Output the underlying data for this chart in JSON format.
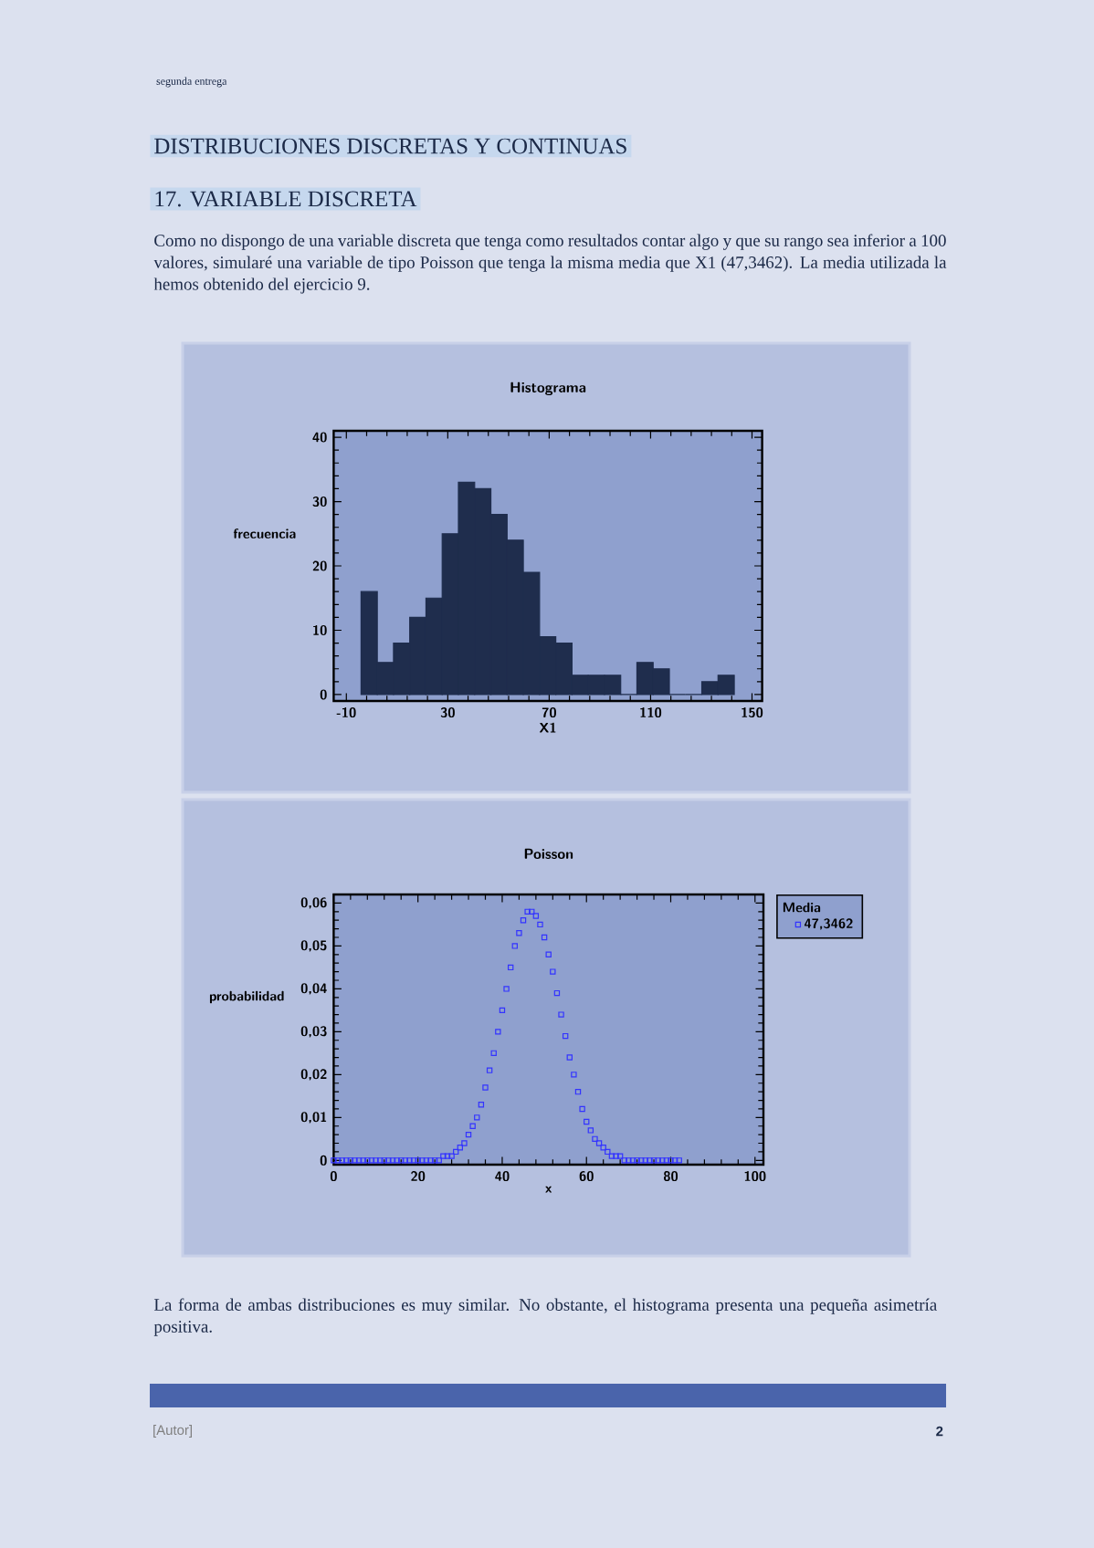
{
  "chart_data": [
    {
      "type": "histogram",
      "title": "Histograma",
      "xlabel": "X1",
      "ylabel": "frecuencia",
      "bins": [
        -4.2,
        2.2,
        8.6,
        15.0,
        21.4,
        27.8,
        34.2,
        40.6,
        47.0,
        53.4,
        59.8,
        66.2,
        72.6,
        79.0,
        85.4,
        91.8,
        98.2,
        104.6,
        111.0,
        117.4,
        123.8,
        130.2,
        136.6,
        143.0
      ],
      "values": [
        16,
        5,
        8,
        12,
        15,
        25,
        33,
        32,
        28,
        24,
        19,
        9,
        8,
        3,
        3,
        3,
        0,
        5,
        4,
        0,
        0,
        2,
        3
      ],
      "color": "#1f2d4d",
      "xlim": [
        -15,
        154
      ],
      "ylim": [
        -1,
        41
      ],
      "xticks": [
        -10,
        30,
        70,
        110,
        150
      ],
      "yticks": [
        0,
        10,
        20,
        30,
        40
      ],
      "annotations": [
        "segunda entrega",
        "DISTRIBUCIONES DISCRETAS Y CONTINUAS",
        "17. VARIABLE DISCRETA",
        "Como no dispongo de una variable discreta que tenga como resultados contar algo y que su rango sea inferior a 100 valores, simularé una variable de tipo Poisson que tenga la misma media que X1 (47,3462). La media utilizada la hemos obtenido del ejercicio 9."
      ]
    },
    {
      "type": "scatter",
      "title": "Poisson",
      "xlabel": "x",
      "ylabel": "probabilidad",
      "legend_title": "Media",
      "x": [
        0,
        1,
        2,
        3,
        4,
        5,
        6,
        7,
        8,
        9,
        10,
        11,
        12,
        13,
        14,
        15,
        16,
        17,
        18,
        19,
        20,
        21,
        22,
        23,
        24,
        25,
        26,
        27,
        28,
        29,
        30,
        31,
        32,
        33,
        34,
        35,
        36,
        37,
        38,
        39,
        40,
        41,
        42,
        43,
        44,
        45,
        46,
        47,
        48,
        49,
        50,
        51,
        52,
        53,
        54,
        55,
        56,
        57,
        58,
        59,
        60,
        61,
        62,
        63,
        64,
        65,
        66,
        67,
        68,
        69,
        70,
        71,
        72,
        73,
        74,
        75,
        76,
        77,
        78,
        79,
        80,
        81,
        82
      ],
      "series": [
        {
          "name": "47,3462",
          "color": "#3333ff",
          "values": [
            0,
            0,
            0,
            0,
            0,
            0,
            0,
            0,
            0,
            0,
            0,
            0,
            0,
            0,
            0,
            0,
            0,
            0,
            0,
            0,
            0,
            0,
            0,
            0,
            0,
            0,
            0.001,
            0.001,
            0.001,
            0.002,
            0.003,
            0.004,
            0.006,
            0.008,
            0.01,
            0.013,
            0.017,
            0.021,
            0.025,
            0.03,
            0.035,
            0.04,
            0.045,
            0.05,
            0.053,
            0.056,
            0.058,
            0.058,
            0.057,
            0.055,
            0.052,
            0.048,
            0.044,
            0.039,
            0.034,
            0.029,
            0.024,
            0.02,
            0.016,
            0.012,
            0.009,
            0.007,
            0.005,
            0.004,
            0.003,
            0.002,
            0.001,
            0.001,
            0.001,
            0,
            0,
            0,
            0,
            0,
            0,
            0,
            0,
            0,
            0,
            0,
            0,
            0,
            0
          ]
        }
      ],
      "marker": "square",
      "legend": "top right",
      "xlim": [
        0,
        102
      ],
      "ylim": [
        -0.001,
        0.062
      ],
      "xticks": [
        0,
        20,
        40,
        60,
        80,
        100
      ],
      "yticks": [
        0,
        {
          "value": 0.01,
          "label": "0,01"
        },
        {
          "value": 0.02,
          "label": "0,02"
        },
        {
          "value": 0.03,
          "label": "0,03"
        },
        {
          "value": 0.04,
          "label": "0,04"
        },
        {
          "value": 0.05,
          "label": "0,05"
        },
        {
          "value": 0.06,
          "label": "0,06"
        }
      ],
      "annotations": [
        "La forma de ambas distribuciones es muy similar. No obstante, el histograma presenta una pequeña asimetría positiva.",
        "[Autor]",
        "2"
      ]
    }
  ]
}
